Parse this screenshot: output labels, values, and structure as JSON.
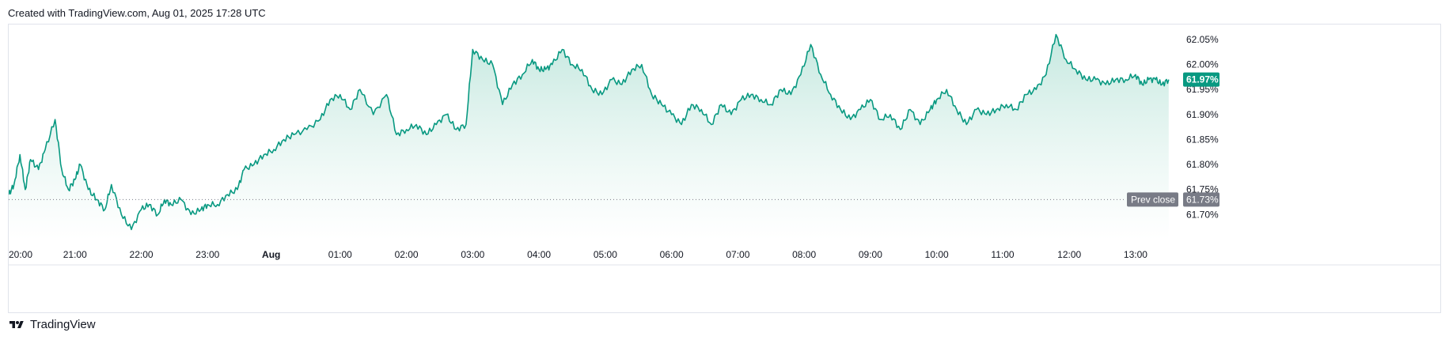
{
  "header": {
    "created_text": "Created with TradingView.com, Aug 01, 2025 17:28 UTC"
  },
  "footer": {
    "brand": "TradingView"
  },
  "colors": {
    "line": "#089981",
    "fill_top": "#bfe6dc",
    "fill_bottom": "#ffffff",
    "badge": "#089981",
    "prev_close_badge": "#787b86",
    "dotted": "#787b86"
  },
  "chart_data": {
    "type": "area",
    "y_unit": "%",
    "ylim": [
      61.65,
      62.08
    ],
    "y_ticks": [
      "62.05%",
      "62.00%",
      "61.95%",
      "61.90%",
      "61.85%",
      "61.80%",
      "61.75%",
      "61.70%"
    ],
    "y_tick_values": [
      62.05,
      62.0,
      61.95,
      61.9,
      61.85,
      61.8,
      61.75,
      61.7
    ],
    "x_ticks": [
      "20:00",
      "21:00",
      "22:00",
      "23:00",
      "Aug",
      "01:00",
      "02:00",
      "03:00",
      "04:00",
      "05:00",
      "06:00",
      "07:00",
      "08:00",
      "09:00",
      "10:00",
      "11:00",
      "12:00",
      "13:00"
    ],
    "x_tick_bold": [
      false,
      false,
      false,
      false,
      true,
      false,
      false,
      false,
      false,
      false,
      false,
      false,
      false,
      false,
      false,
      false,
      false,
      false
    ],
    "x_tick_hours": [
      0,
      1,
      2,
      3,
      4,
      5,
      6,
      7,
      8,
      9,
      10,
      11,
      12,
      13,
      14,
      15,
      16,
      17
    ],
    "x_range_hours": [
      0,
      17.55
    ],
    "last_value": 61.97,
    "last_label": "61.97%",
    "prev_close": 61.73,
    "prev_close_label": "Prev close",
    "prev_close_value_label": "61.73%",
    "series": [
      {
        "x": [
          0,
          0.08,
          0.17,
          0.25,
          0.33,
          0.45,
          0.55,
          0.7,
          0.8,
          0.9,
          1.0,
          1.08,
          1.2,
          1.33,
          1.45,
          1.55,
          1.7,
          1.85,
          2.0,
          2.12,
          2.25,
          2.35,
          2.45,
          2.6,
          2.75,
          2.9,
          3.0,
          3.15,
          3.3,
          3.45,
          3.55,
          3.7,
          3.85,
          4.0,
          4.15,
          4.3,
          4.5,
          4.7,
          4.85,
          5.0,
          5.15,
          5.3,
          5.5,
          5.7,
          5.85,
          6.0,
          6.15,
          6.3,
          6.45,
          6.6,
          6.75,
          6.9,
          7.0,
          7.15,
          7.3,
          7.45,
          7.6,
          7.75,
          7.9,
          8.0,
          8.1,
          8.2,
          8.35,
          8.5,
          8.65,
          8.8,
          8.95,
          9.1,
          9.25,
          9.4,
          9.55,
          9.7,
          9.85,
          10.0,
          10.15,
          10.3,
          10.45,
          10.6,
          10.75,
          10.9,
          11.05,
          11.2,
          11.35,
          11.5,
          11.65,
          11.8,
          11.95,
          12.1,
          12.25,
          12.4,
          12.55,
          12.7,
          12.85,
          13.0,
          13.15,
          13.3,
          13.45,
          13.6,
          13.75,
          13.9,
          14.0,
          14.15,
          14.3,
          14.45,
          14.6,
          14.75,
          14.9,
          15.05,
          15.2,
          15.35,
          15.5,
          15.65,
          15.8,
          15.95,
          16.1,
          16.25,
          16.4,
          16.55,
          16.7,
          16.85,
          17.0,
          17.1,
          17.2,
          17.3,
          17.4,
          17.5
        ],
        "y": [
          61.74,
          61.76,
          61.82,
          61.75,
          61.81,
          61.79,
          61.83,
          61.89,
          61.79,
          61.75,
          61.77,
          61.8,
          61.75,
          61.73,
          61.71,
          61.76,
          61.7,
          61.67,
          61.71,
          61.72,
          61.7,
          61.73,
          61.72,
          61.73,
          61.7,
          61.71,
          61.72,
          61.72,
          61.74,
          61.75,
          61.79,
          61.8,
          61.82,
          61.83,
          61.85,
          61.86,
          61.87,
          61.89,
          61.93,
          61.94,
          61.91,
          61.95,
          61.9,
          61.94,
          61.86,
          61.87,
          61.88,
          61.86,
          61.88,
          61.9,
          61.87,
          61.88,
          62.03,
          62.01,
          62.0,
          61.92,
          61.96,
          61.98,
          62.01,
          61.99,
          61.99,
          62.0,
          62.03,
          62.0,
          61.99,
          61.95,
          61.94,
          61.97,
          61.96,
          61.99,
          62.0,
          61.94,
          61.92,
          61.9,
          61.88,
          61.92,
          61.91,
          61.88,
          61.92,
          61.9,
          61.93,
          61.94,
          61.93,
          61.92,
          61.95,
          61.94,
          61.98,
          62.04,
          61.98,
          61.94,
          61.91,
          61.89,
          61.91,
          61.93,
          61.89,
          61.9,
          61.87,
          61.91,
          61.88,
          61.91,
          61.93,
          61.95,
          61.91,
          61.88,
          61.91,
          61.9,
          61.91,
          61.92,
          61.91,
          61.94,
          61.95,
          61.98,
          62.06,
          62.01,
          61.99,
          61.97,
          61.97,
          61.96,
          61.97,
          61.97,
          61.98,
          61.96,
          61.97,
          61.97,
          61.96,
          61.97
        ]
      }
    ]
  }
}
